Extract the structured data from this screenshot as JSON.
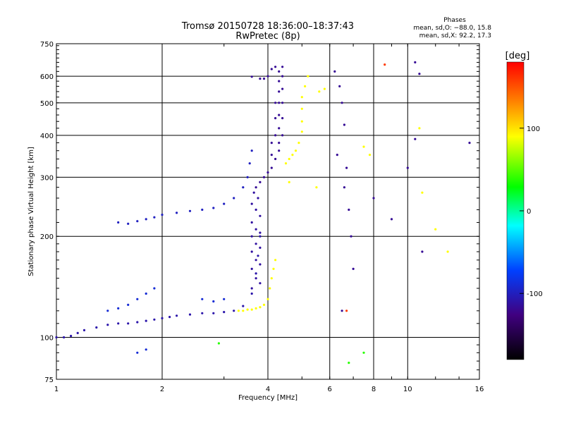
{
  "chart_data": {
    "type": "scatter",
    "title": "Tromsø 20150728 18:36:00–18:37:43",
    "subtitle": "RwPretec (8p)",
    "stats": {
      "heading": "Phases",
      "line1": "mean, sd,O: −88.0, 15.8",
      "line2": "mean, sd,X:  92.2, 17.3"
    },
    "xlabel": "Frequency [MHz]",
    "ylabel": "Stationary phase Virtual Height [km]",
    "x_scale": "log",
    "y_scale": "log",
    "xlim": [
      1,
      16
    ],
    "ylim": [
      75,
      750
    ],
    "x_ticks": [
      1,
      2,
      4,
      6,
      8,
      10,
      16
    ],
    "y_ticks": [
      75,
      100,
      200,
      300,
      400,
      500,
      600,
      750
    ],
    "grid": true,
    "colorbar": {
      "label": "[deg]",
      "range": [
        -180,
        180
      ],
      "ticks": [
        100,
        0,
        -100
      ]
    },
    "series": [
      {
        "phase": -110,
        "points": [
          [
            1.0,
            100
          ],
          [
            1.05,
            100
          ],
          [
            1.1,
            101
          ],
          [
            1.15,
            103
          ],
          [
            1.2,
            105
          ],
          [
            1.3,
            107
          ],
          [
            1.4,
            109
          ],
          [
            1.5,
            110
          ],
          [
            1.6,
            110
          ],
          [
            1.7,
            111
          ],
          [
            1.8,
            112
          ],
          [
            1.9,
            113
          ],
          [
            2.0,
            114
          ],
          [
            2.1,
            115
          ],
          [
            2.2,
            116
          ],
          [
            2.4,
            117
          ],
          [
            2.6,
            118
          ],
          [
            2.8,
            118
          ],
          [
            3.0,
            119
          ],
          [
            3.2,
            120
          ],
          [
            3.4,
            124
          ],
          [
            3.6,
            135
          ],
          [
            3.7,
            155
          ],
          [
            3.75,
            175
          ],
          [
            3.8,
            200
          ]
        ]
      },
      {
        "phase": -100,
        "points": [
          [
            1.5,
            220
          ],
          [
            1.6,
            218
          ],
          [
            1.7,
            222
          ],
          [
            1.8,
            225
          ],
          [
            1.9,
            228
          ],
          [
            2.0,
            232
          ],
          [
            2.2,
            235
          ],
          [
            2.4,
            238
          ],
          [
            2.6,
            240
          ],
          [
            2.8,
            243
          ],
          [
            3.0,
            250
          ],
          [
            3.2,
            260
          ],
          [
            3.4,
            280
          ],
          [
            3.5,
            300
          ],
          [
            3.55,
            330
          ],
          [
            3.6,
            360
          ]
        ]
      },
      {
        "phase": -115,
        "points": [
          [
            3.6,
            140
          ],
          [
            3.6,
            160
          ],
          [
            3.6,
            180
          ],
          [
            3.6,
            200
          ],
          [
            3.6,
            220
          ],
          [
            3.6,
            250
          ],
          [
            3.7,
            150
          ],
          [
            3.7,
            170
          ],
          [
            3.7,
            190
          ],
          [
            3.7,
            210
          ],
          [
            3.7,
            240
          ],
          [
            3.8,
            145
          ],
          [
            3.8,
            165
          ],
          [
            3.8,
            185
          ],
          [
            3.8,
            205
          ],
          [
            3.8,
            230
          ],
          [
            3.75,
            260
          ],
          [
            3.65,
            270
          ]
        ]
      },
      {
        "phase": -120,
        "points": [
          [
            3.7,
            280
          ],
          [
            3.8,
            290
          ],
          [
            3.9,
            300
          ],
          [
            4.0,
            310
          ],
          [
            4.1,
            320
          ],
          [
            4.2,
            340
          ],
          [
            4.3,
            360
          ],
          [
            4.3,
            380
          ],
          [
            4.3,
            420
          ],
          [
            4.3,
            460
          ],
          [
            4.3,
            500
          ],
          [
            4.3,
            540
          ],
          [
            4.3,
            580
          ],
          [
            4.3,
            620
          ],
          [
            4.2,
            640
          ],
          [
            4.1,
            630
          ],
          [
            4.0,
            600
          ],
          [
            3.9,
            590
          ],
          [
            3.8,
            590
          ],
          [
            3.6,
            598
          ],
          [
            4.4,
            400
          ],
          [
            4.4,
            450
          ],
          [
            4.4,
            500
          ],
          [
            4.4,
            550
          ],
          [
            4.4,
            600
          ],
          [
            4.4,
            640
          ],
          [
            4.2,
            400
          ],
          [
            4.2,
            450
          ],
          [
            4.2,
            500
          ],
          [
            4.1,
            380
          ],
          [
            4.1,
            350
          ]
        ]
      },
      {
        "phase": 95,
        "points": [
          [
            3.3,
            120
          ],
          [
            3.4,
            120
          ],
          [
            3.5,
            121
          ],
          [
            3.6,
            121
          ],
          [
            3.7,
            122
          ],
          [
            3.8,
            123
          ],
          [
            3.9,
            125
          ],
          [
            4.0,
            130
          ],
          [
            4.05,
            140
          ],
          [
            4.1,
            150
          ],
          [
            4.15,
            160
          ],
          [
            4.2,
            170
          ],
          [
            4.5,
            330
          ],
          [
            4.6,
            340
          ],
          [
            4.7,
            350
          ],
          [
            4.8,
            360
          ],
          [
            4.9,
            380
          ],
          [
            5.0,
            410
          ],
          [
            5.0,
            440
          ],
          [
            5.0,
            480
          ],
          [
            5.0,
            520
          ],
          [
            5.1,
            560
          ],
          [
            5.2,
            600
          ],
          [
            5.5,
            280
          ],
          [
            4.6,
            290
          ],
          [
            5.6,
            540
          ],
          [
            5.8,
            550
          ]
        ]
      },
      {
        "phase": -90,
        "points": [
          [
            1.4,
            120
          ],
          [
            1.5,
            122
          ],
          [
            1.6,
            125
          ],
          [
            1.7,
            130
          ],
          [
            1.8,
            135
          ],
          [
            1.9,
            140
          ],
          [
            2.6,
            130
          ],
          [
            2.8,
            128
          ],
          [
            3.0,
            130
          ],
          [
            1.7,
            90
          ],
          [
            1.8,
            92
          ]
        ]
      },
      {
        "phase": -120,
        "points": [
          [
            6.2,
            620
          ],
          [
            6.4,
            560
          ],
          [
            6.5,
            500
          ],
          [
            6.6,
            430
          ],
          [
            6.3,
            350
          ],
          [
            6.7,
            320
          ],
          [
            6.6,
            280
          ],
          [
            6.8,
            240
          ],
          [
            6.9,
            200
          ],
          [
            7.0,
            160
          ],
          [
            6.5,
            120
          ],
          [
            8.0,
            260
          ],
          [
            9.0,
            225
          ],
          [
            10.0,
            320
          ],
          [
            10.5,
            390
          ],
          [
            10.8,
            610
          ],
          [
            11.0,
            180
          ],
          [
            10.5,
            660
          ],
          [
            15.0,
            380
          ]
        ]
      },
      {
        "phase": 95,
        "points": [
          [
            7.5,
            370
          ],
          [
            7.8,
            350
          ],
          [
            10.8,
            420
          ],
          [
            11.0,
            270
          ],
          [
            12.0,
            210
          ],
          [
            13.0,
            180
          ]
        ]
      },
      {
        "phase": 160,
        "points": [
          [
            8.6,
            650
          ],
          [
            6.7,
            120
          ]
        ]
      },
      {
        "phase": 40,
        "points": [
          [
            2.9,
            96
          ],
          [
            6.8,
            84
          ],
          [
            7.5,
            90
          ]
        ]
      }
    ]
  }
}
